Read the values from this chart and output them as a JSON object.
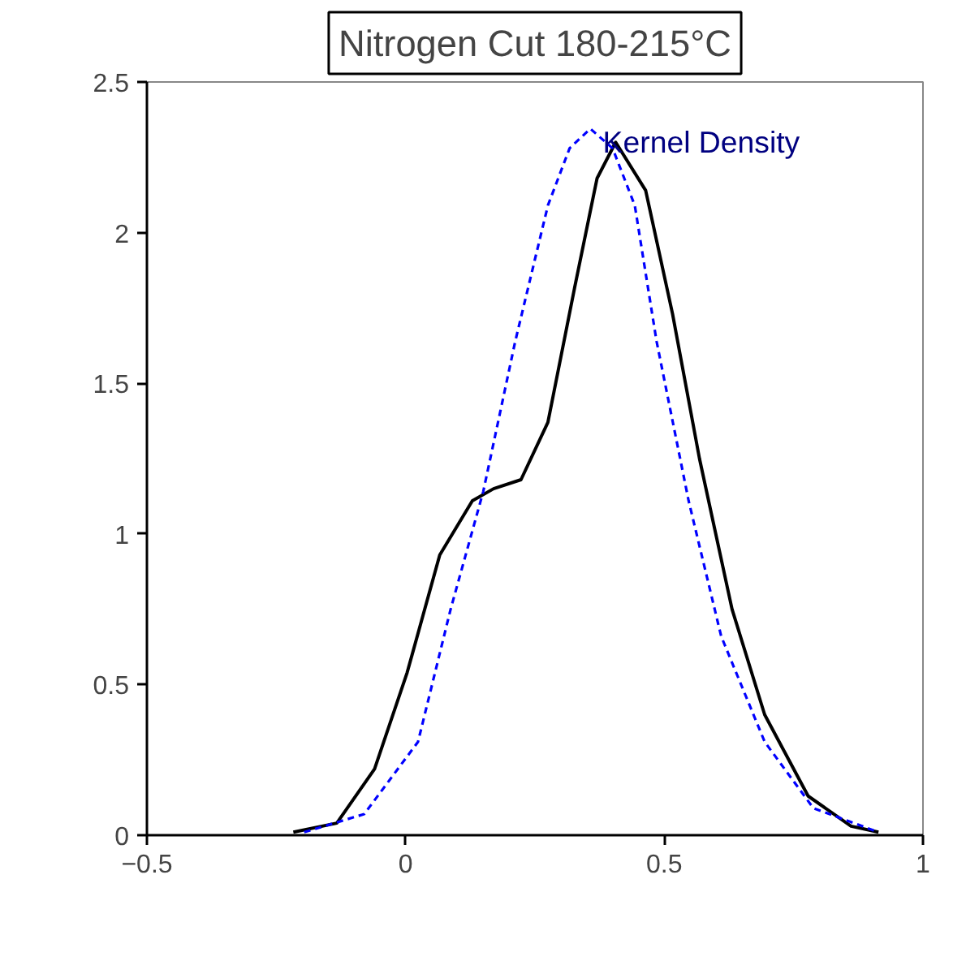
{
  "chart_data": {
    "type": "line",
    "title": "Nitrogen Cut 180-215°C",
    "annotations": [
      {
        "text": "Kernel Density",
        "x": 0.4,
        "y": 2.3
      }
    ],
    "series": [
      {
        "color": "#000000",
        "line_style": "solid",
        "x": [
          -0.217,
          -0.133,
          -0.06,
          0.003,
          0.066,
          0.129,
          0.17,
          0.223,
          0.275,
          0.327,
          0.37,
          0.406,
          0.464,
          0.516,
          0.568,
          0.631,
          0.694,
          0.778,
          0.861,
          0.914
        ],
        "values": [
          0.01,
          0.04,
          0.22,
          0.54,
          0.93,
          1.11,
          1.15,
          1.18,
          1.37,
          1.82,
          2.18,
          2.3,
          2.14,
          1.73,
          1.25,
          0.75,
          0.4,
          0.13,
          0.03,
          0.01
        ]
      },
      {
        "color": "#0000ff",
        "line_style": "dashed",
        "x": [
          -0.196,
          -0.08,
          0.024,
          0.087,
          0.15,
          0.212,
          0.275,
          0.317,
          0.357,
          0.4,
          0.443,
          0.485,
          0.547,
          0.61,
          0.694,
          0.788,
          0.914
        ],
        "values": [
          0.01,
          0.07,
          0.31,
          0.75,
          1.14,
          1.64,
          2.09,
          2.28,
          2.345,
          2.28,
          2.09,
          1.64,
          1.11,
          0.66,
          0.31,
          0.09,
          0.01
        ]
      }
    ],
    "xlim": [
      -0.5,
      1
    ],
    "xticks": [
      -0.5,
      0,
      0.5,
      1
    ],
    "ylim": [
      0,
      2.5
    ],
    "yticks": [
      0,
      0.5,
      1,
      1.5,
      2,
      2.5
    ],
    "grid": false,
    "marker": "none"
  }
}
